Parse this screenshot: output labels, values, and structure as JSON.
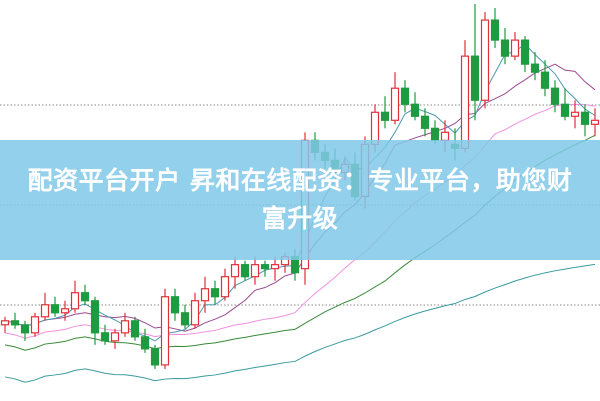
{
  "banner": {
    "title": "配资平台开户 昇和在线配资：专业平台，助您财富升级"
  },
  "colors": {
    "up": "#e0303a",
    "down": "#1e9a40",
    "banner": "#80c8e8",
    "ma5": "#4a9ab0",
    "ma10": "#9a4a90",
    "ma20": "#f090e0",
    "ma60": "#3a8a3a",
    "ma120": "#3a9aa0",
    "grid": "#888888"
  },
  "chart_data": {
    "type": "candlestick",
    "title": "",
    "xlabel": "",
    "ylabel": "",
    "ylim": [
      0,
      100
    ],
    "grid": "dotted horizontal",
    "moving_averages": [
      "ma5",
      "ma10",
      "ma20",
      "ma60",
      "ma120"
    ],
    "ohlc": [
      [
        19,
        21,
        17,
        20
      ],
      [
        20,
        22,
        18,
        19
      ],
      [
        19,
        20,
        15,
        17
      ],
      [
        17,
        22,
        16,
        21
      ],
      [
        21,
        27,
        20,
        24
      ],
      [
        24,
        26,
        21,
        22
      ],
      [
        22,
        25,
        20,
        23
      ],
      [
        23,
        30,
        22,
        27
      ],
      [
        27,
        29,
        24,
        25
      ],
      [
        25,
        26,
        14,
        17
      ],
      [
        17,
        19,
        14,
        15
      ],
      [
        15,
        18,
        13,
        17
      ],
      [
        17,
        22,
        16,
        20
      ],
      [
        20,
        21,
        15,
        16
      ],
      [
        16,
        18,
        12,
        13
      ],
      [
        13,
        14,
        8,
        9
      ],
      [
        9,
        28,
        8,
        26
      ],
      [
        26,
        28,
        20,
        22
      ],
      [
        22,
        24,
        18,
        19
      ],
      [
        19,
        27,
        18,
        25
      ],
      [
        25,
        31,
        22,
        28
      ],
      [
        28,
        30,
        24,
        26
      ],
      [
        26,
        33,
        25,
        31
      ],
      [
        31,
        36,
        28,
        34
      ],
      [
        34,
        35,
        30,
        31
      ],
      [
        31,
        36,
        29,
        34
      ],
      [
        34,
        35,
        31,
        33
      ],
      [
        33,
        36,
        30,
        34
      ],
      [
        34,
        37,
        32,
        36
      ],
      [
        36,
        38,
        30,
        32
      ],
      [
        33,
        67,
        29,
        65
      ],
      [
        65,
        67,
        60,
        62
      ],
      [
        62,
        64,
        58,
        60
      ],
      [
        60,
        63,
        56,
        57
      ],
      [
        57,
        61,
        55,
        59
      ],
      [
        59,
        62,
        50,
        51
      ],
      [
        51,
        66,
        48,
        64
      ],
      [
        64,
        74,
        62,
        72
      ],
      [
        72,
        76,
        68,
        70
      ],
      [
        70,
        82,
        69,
        78
      ],
      [
        78,
        80,
        72,
        74
      ],
      [
        74,
        77,
        70,
        71
      ],
      [
        71,
        73,
        66,
        68
      ],
      [
        68,
        70,
        64,
        65
      ],
      [
        65,
        70,
        62,
        67
      ],
      [
        64,
        68,
        60,
        63
      ],
      [
        63,
        90,
        62,
        86
      ],
      [
        86,
        99,
        70,
        75
      ],
      [
        75,
        97,
        73,
        95
      ],
      [
        95,
        98,
        88,
        90
      ],
      [
        90,
        93,
        84,
        86
      ],
      [
        86,
        92,
        85,
        90
      ],
      [
        90,
        91,
        82,
        84
      ],
      [
        84,
        87,
        80,
        82
      ],
      [
        82,
        85,
        76,
        78
      ],
      [
        78,
        80,
        72,
        74
      ],
      [
        74,
        78,
        70,
        71
      ],
      [
        71,
        75,
        68,
        72
      ],
      [
        72,
        74,
        66,
        69
      ],
      [
        69,
        73,
        66,
        70
      ]
    ]
  }
}
